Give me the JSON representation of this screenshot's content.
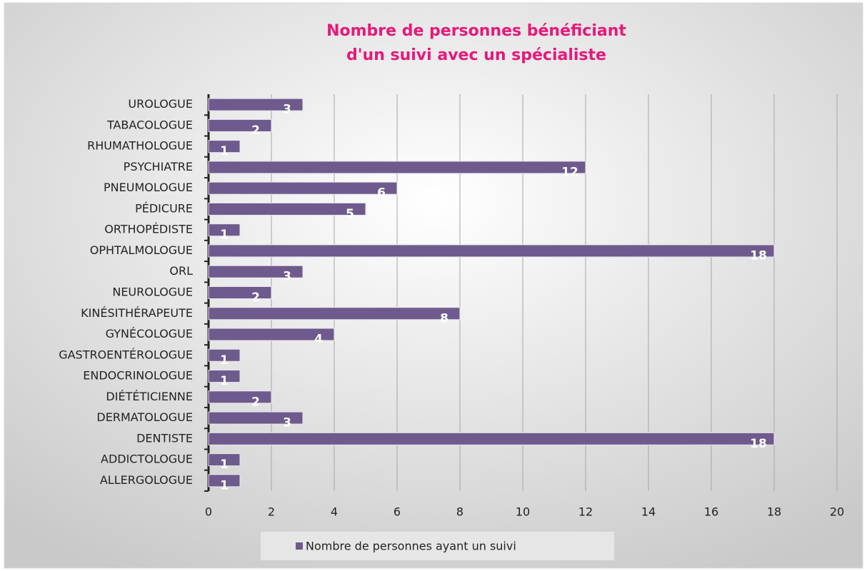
{
  "chart_data": {
    "type": "bar",
    "orientation": "horizontal",
    "title": [
      "Nombre de personnes bénéficiant",
      "d'un suivi avec un spécialiste"
    ],
    "categories": [
      "ALLERGOLOGUE",
      "ADDICTOLOGUE",
      "DENTISTE",
      "DERMATOLOGUE",
      "DIÉTÉTICIENNE",
      "ENDOCRINOLOGUE",
      "GASTROENTÉROLOGUE",
      "GYNÉCOLOGUE",
      "KINÉSITHÉRAPEUTE",
      "NEUROLOGUE",
      "ORL",
      "OPHTALMOLOGUE",
      "ORTHOPÉDISTE",
      "PÉDICURE",
      "PNEUMOLOGUE",
      "PSYCHIATRE",
      "RHUMATHOLOGUE",
      "TABACOLOGUE",
      "UROLOGUE"
    ],
    "series": [
      {
        "name": "Nombre de personnes ayant un suivi",
        "color": "#6e5a8c",
        "values": [
          1,
          1,
          18,
          3,
          2,
          1,
          1,
          4,
          8,
          2,
          3,
          18,
          1,
          5,
          6,
          12,
          1,
          2,
          3
        ]
      }
    ],
    "xlim": [
      0,
      20
    ],
    "xticks": [
      0,
      2,
      4,
      6,
      8,
      10,
      12,
      14,
      16,
      18,
      20
    ],
    "grid": true,
    "legend": "bottom"
  }
}
